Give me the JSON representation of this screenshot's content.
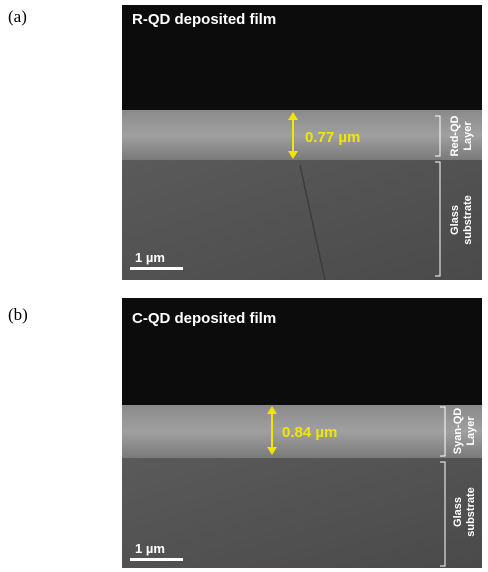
{
  "panels": [
    {
      "label": "(a)",
      "title": "R-QD deposited film",
      "thickness": "0.77 µm",
      "layer_label": [
        "Red-QD",
        "Layer"
      ],
      "substrate_label": [
        "Glass",
        "substrate"
      ],
      "scale_bar": "1 µm"
    },
    {
      "label": "(b)",
      "title": "C-QD deposited film",
      "thickness": "0.84 µm",
      "layer_label": [
        "Syan-QD",
        "Layer"
      ],
      "substrate_label": [
        "Glass",
        "substrate"
      ],
      "scale_bar": "1 µm"
    }
  ]
}
